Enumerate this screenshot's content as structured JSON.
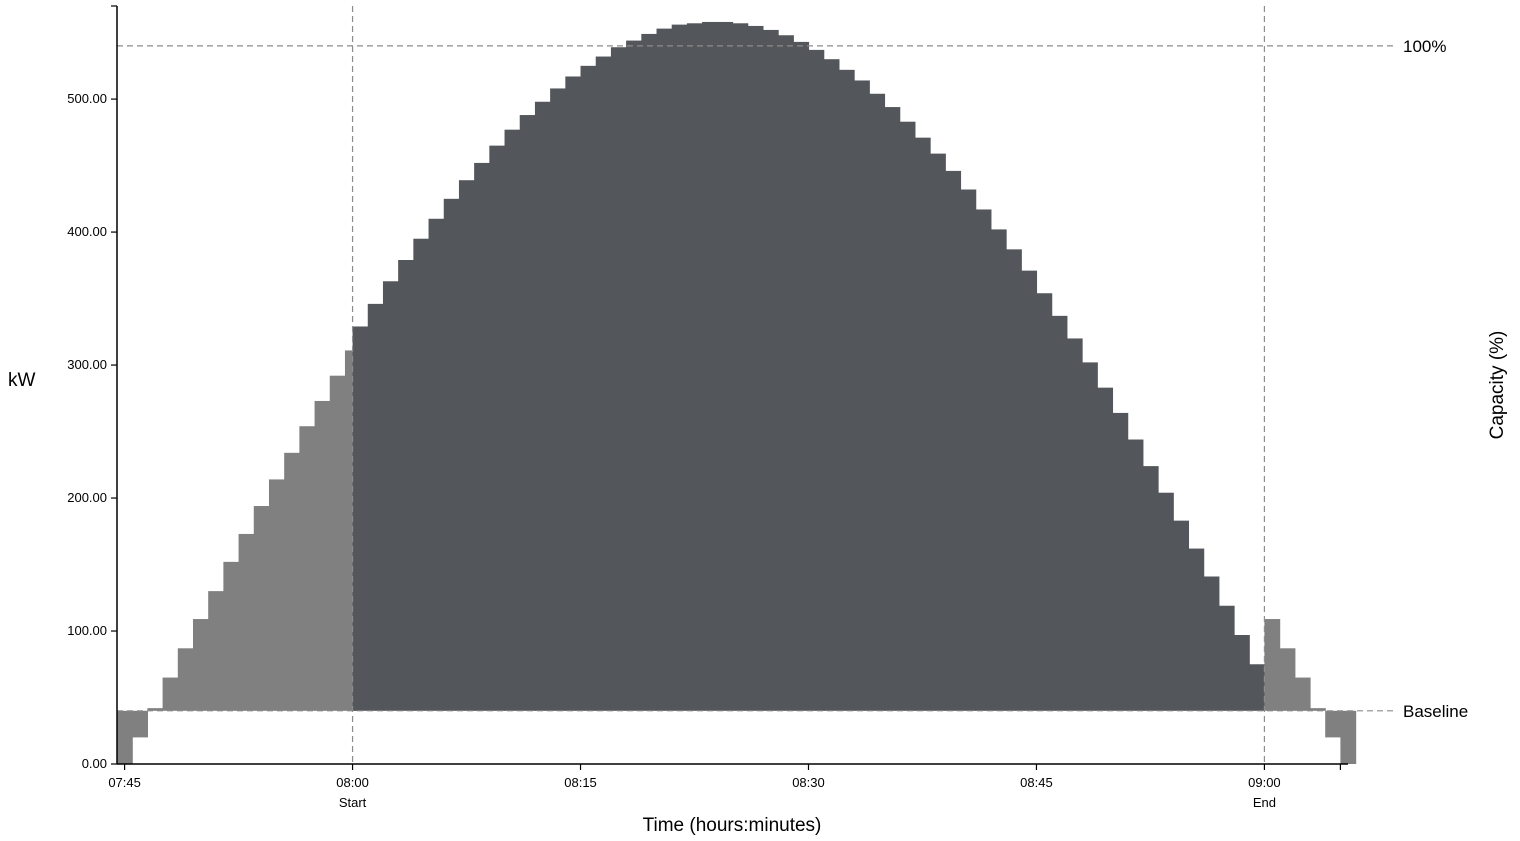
{
  "chart_data": {
    "type": "bar",
    "xlabel": "Time (hours:minutes)",
    "ylabel": "kW",
    "y2label": "Capacity (%)",
    "ylim": [
      0,
      570
    ],
    "y_ticks": [
      "0.00",
      "100.00",
      "200.00",
      "300.00",
      "400.00",
      "500.00"
    ],
    "y_tick_values": [
      0,
      100,
      200,
      300,
      400,
      500
    ],
    "x_range_minutes": [
      -15.5,
      65.5
    ],
    "x_ticks": [
      {
        "minute": -15,
        "label": "07:45"
      },
      {
        "minute": 0,
        "label": "08:00",
        "sublabel": "Start"
      },
      {
        "minute": 15,
        "label": "08:15"
      },
      {
        "minute": 30,
        "label": "08:30"
      },
      {
        "minute": 45,
        "label": "08:45"
      },
      {
        "minute": 60,
        "label": "09:00",
        "sublabel": "End"
      },
      {
        "minute": 65,
        "label": ""
      }
    ],
    "reference_lines": [
      {
        "value": 540,
        "label": "100%"
      },
      {
        "value": 40,
        "label": "Baseline"
      }
    ],
    "event_window_minutes": [
      0,
      60
    ],
    "pre_values": [
      0,
      20,
      42,
      65,
      87,
      109,
      130,
      152,
      173,
      194,
      214,
      234,
      254,
      273,
      292,
      311
    ],
    "event_values": [
      329,
      346,
      363,
      379,
      395,
      410,
      425,
      439,
      452,
      465,
      477,
      488,
      498,
      508,
      517,
      525,
      532,
      539,
      544,
      549,
      553,
      556,
      557,
      558,
      558,
      557,
      555,
      552,
      548,
      543,
      537,
      530,
      522,
      514,
      504,
      494,
      483,
      471,
      459,
      446,
      432,
      417,
      402,
      387,
      371,
      354,
      337,
      320,
      302,
      283,
      264,
      244,
      224,
      204,
      183,
      162,
      141,
      119,
      97,
      75
    ],
    "post_values": [
      109,
      87,
      65,
      42,
      20,
      0
    ],
    "colors": {
      "event_bars": "#53565a",
      "ramp_bars": "#808080",
      "axis": "#000000",
      "reference": "#8c8c8c"
    }
  }
}
